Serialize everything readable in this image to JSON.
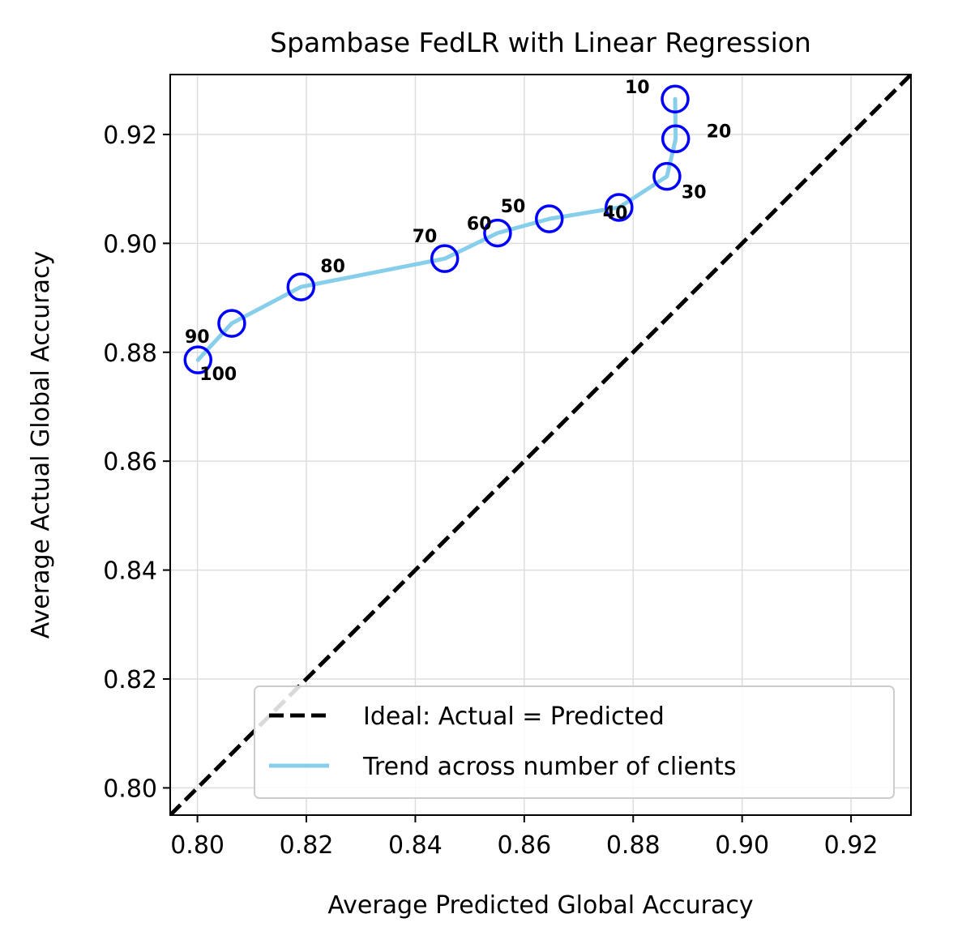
{
  "chart_data": {
    "type": "scatter",
    "title": "Spambase FedLR with Linear Regression",
    "xlabel": "Average Predicted Global Accuracy",
    "ylabel": "Average Actual Global Accuracy",
    "xlim": [
      0.795,
      0.931
    ],
    "ylim": [
      0.795,
      0.931
    ],
    "xticks": [
      "0.80",
      "0.82",
      "0.84",
      "0.86",
      "0.88",
      "0.90",
      "0.92"
    ],
    "yticks": [
      "0.80",
      "0.82",
      "0.84",
      "0.86",
      "0.88",
      "0.90",
      "0.92"
    ],
    "grid": true,
    "legend_position": "lower-right",
    "legend": [
      {
        "label": "Ideal: Actual = Predicted",
        "style": "dashed",
        "color": "#000000"
      },
      {
        "label": "Trend across number of clients",
        "style": "solid",
        "color": "#87ceeb"
      }
    ],
    "ideal_line": {
      "x": [
        0.795,
        0.931
      ],
      "y": [
        0.795,
        0.931
      ]
    },
    "points": [
      {
        "label": "10",
        "x": 0.8877,
        "y": 0.9265
      },
      {
        "label": "20",
        "x": 0.8878,
        "y": 0.9192
      },
      {
        "label": "30",
        "x": 0.8862,
        "y": 0.9123
      },
      {
        "label": "40",
        "x": 0.8774,
        "y": 0.9066
      },
      {
        "label": "50",
        "x": 0.8646,
        "y": 0.9045
      },
      {
        "label": "60",
        "x": 0.8551,
        "y": 0.9019
      },
      {
        "label": "70",
        "x": 0.8454,
        "y": 0.8972
      },
      {
        "label": "80",
        "x": 0.819,
        "y": 0.892
      },
      {
        "label": "90",
        "x": 0.8063,
        "y": 0.8853
      },
      {
        "label": "100",
        "x": 0.8001,
        "y": 0.8786
      }
    ],
    "colors": {
      "marker": "#0000ff",
      "trend": "#87ceeb",
      "ideal": "#000000",
      "grid": "#dddddd"
    }
  }
}
